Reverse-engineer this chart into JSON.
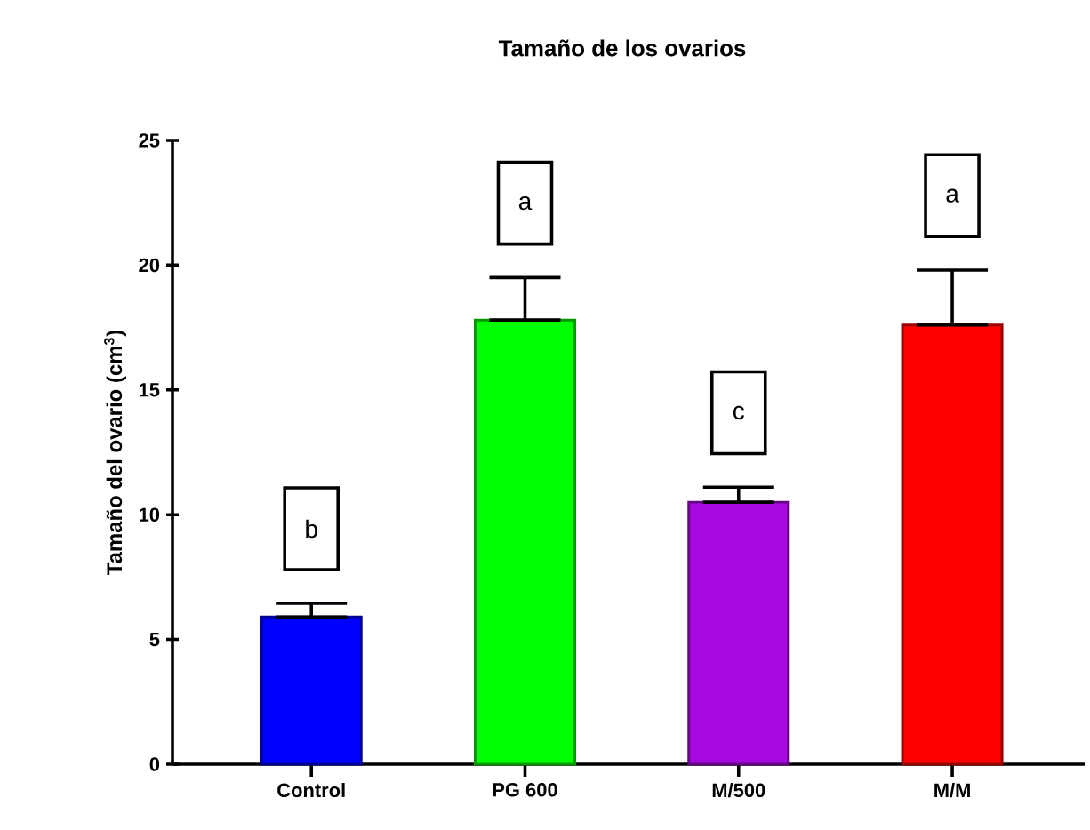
{
  "chart_data": {
    "type": "bar",
    "title": "Tamaño de los ovarios",
    "ylabel": "Tamaño del ovario (cm$^{3}$)",
    "categories": [
      "Control",
      "PG 600",
      "M/500",
      "M/M"
    ],
    "values": [
      5.9,
      17.8,
      10.5,
      17.6
    ],
    "errors": [
      [
        5.9,
        6.45
      ],
      [
        17.8,
        19.5
      ],
      [
        10.5,
        11.1
      ],
      [
        17.6,
        19.8
      ]
    ],
    "colors": [
      "#0000ff",
      "#00ff00",
      "#a808e0",
      "#ff0000"
    ],
    "ylim": [
      0,
      25
    ],
    "yticks": [
      0,
      5,
      10,
      15,
      20,
      25
    ],
    "grid": false,
    "annotations": [
      "b",
      "a",
      "c",
      "a"
    ]
  }
}
